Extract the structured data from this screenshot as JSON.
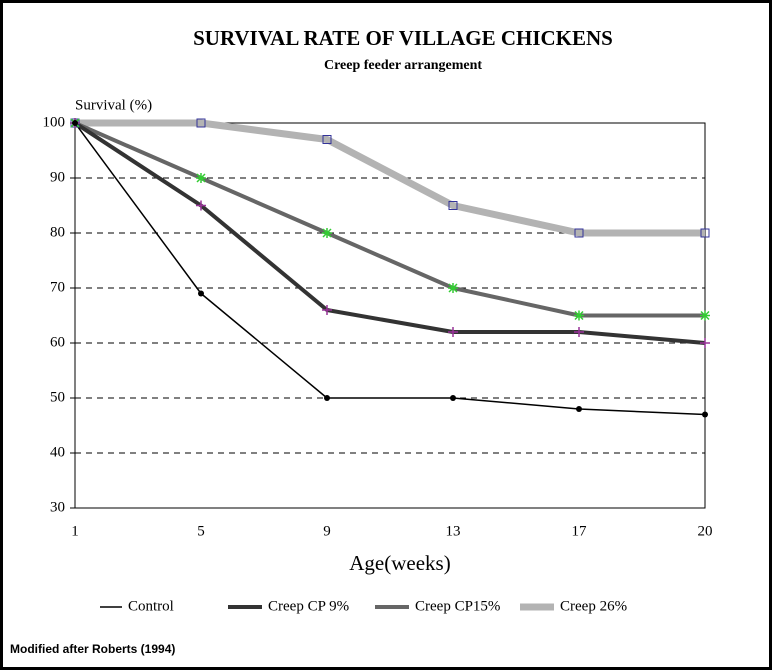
{
  "chart_data": {
    "type": "line",
    "title": "SURVIVAL RATE OF VILLAGE CHICKENS",
    "subtitle": "Creep feeder arrangement",
    "y_label": "Survival (%)",
    "x_label": "Age(weeks)",
    "note": "Modified after Roberts (1994)",
    "categories": [
      "1",
      "5",
      "9",
      "13",
      "17",
      "20"
    ],
    "series": [
      {
        "name": "Control",
        "color": "#000000",
        "marker_color": "#000000",
        "marker": "dot",
        "values": [
          100,
          69,
          50,
          50,
          48,
          47
        ]
      },
      {
        "name": "Creep CP 9%",
        "color": "#333333",
        "marker_color": "#993399",
        "marker": "plus",
        "values": [
          100,
          85,
          66,
          62,
          62,
          60
        ]
      },
      {
        "name": "Creep CP15%",
        "color": "#666666",
        "marker_color": "#33cc33",
        "marker": "star",
        "values": [
          100,
          90,
          80,
          70,
          65,
          65
        ]
      },
      {
        "name": "Creep 26%",
        "color": "#b3b3b3",
        "marker_color": "#333399",
        "marker": "square",
        "values": [
          100,
          100,
          97,
          85,
          80,
          80
        ]
      }
    ],
    "ylim": [
      30,
      100
    ],
    "yticks": [
      30,
      40,
      50,
      60,
      70,
      80,
      90,
      100
    ],
    "grid": true
  }
}
